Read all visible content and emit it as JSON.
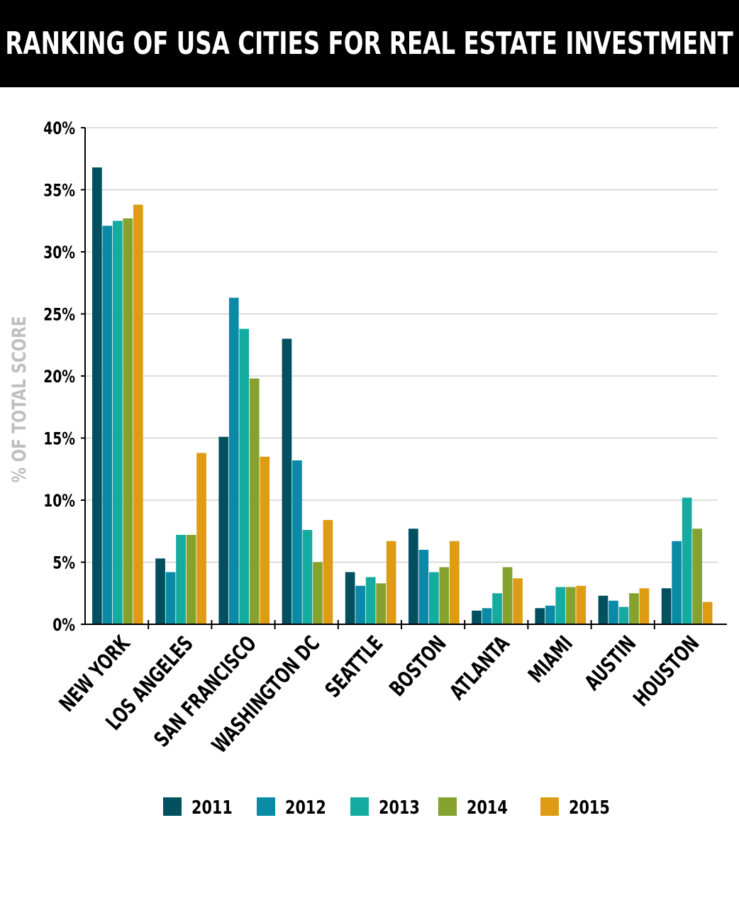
{
  "title": "RANKING OF USA CITIES FOR REAL ESTATE INVESTMENT",
  "colors": {
    "title_bar": "#000000",
    "title_text": "#ffffff",
    "axis": "#000000",
    "grid": "#cccccc",
    "ylabel": "#bfbfbf",
    "2011": "#005060",
    "2012": "#0a8aa6",
    "2013": "#14aca0",
    "2014": "#86a22e",
    "2015": "#de9c14"
  },
  "chart_data": {
    "type": "bar",
    "ylabel": "% OF TOTAL SCORE",
    "xlabel": "",
    "ylim": [
      0,
      40
    ],
    "yticks": [
      0,
      5,
      10,
      15,
      20,
      25,
      30,
      35,
      40
    ],
    "ytick_labels": [
      "0%",
      "5%",
      "10%",
      "15%",
      "20%",
      "25%",
      "30%",
      "35%",
      "40%"
    ],
    "grid": true,
    "legend_position": "bottom",
    "categories": [
      "NEW YORK",
      "LOS ANGELES",
      "SAN FRANCISCO",
      "WASHINGTON DC",
      "SEATTLE",
      "BOSTON",
      "ATLANTA",
      "MIAMI",
      "AUSTIN",
      "HOUSTON"
    ],
    "series": [
      {
        "name": "2011",
        "values": [
          36.8,
          5.3,
          15.1,
          23.0,
          4.2,
          7.7,
          1.1,
          1.3,
          2.3,
          2.9
        ]
      },
      {
        "name": "2012",
        "values": [
          32.1,
          4.2,
          26.3,
          13.2,
          3.1,
          6.0,
          1.3,
          1.5,
          1.9,
          6.7
        ]
      },
      {
        "name": "2013",
        "values": [
          32.5,
          7.2,
          23.8,
          7.6,
          3.8,
          4.2,
          2.5,
          3.0,
          1.4,
          10.2
        ]
      },
      {
        "name": "2014",
        "values": [
          32.7,
          7.2,
          19.8,
          5.0,
          3.3,
          4.6,
          4.6,
          3.0,
          2.5,
          7.7
        ]
      },
      {
        "name": "2015",
        "values": [
          33.8,
          13.8,
          13.5,
          8.4,
          6.7,
          6.7,
          3.7,
          3.1,
          2.9,
          1.8
        ]
      }
    ]
  }
}
